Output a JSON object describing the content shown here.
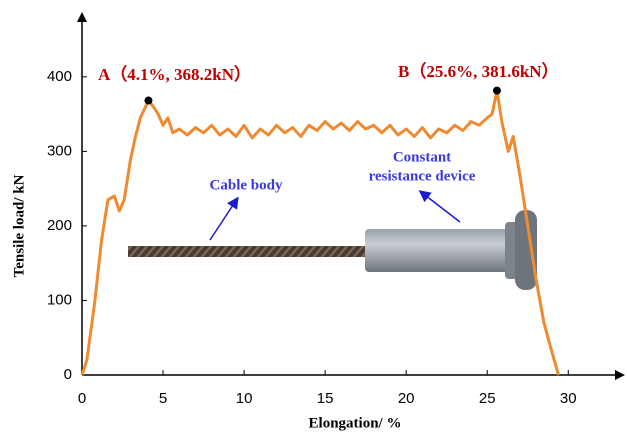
{
  "chart_data": {
    "type": "line",
    "x_label": "Elongation/ %",
    "y_label": "Tensile load/ kN",
    "color": "#f08a30",
    "xlim": [
      0,
      33.5
    ],
    "ylim": [
      0,
      487
    ],
    "xticks": [
      0,
      5,
      10,
      15,
      20,
      25,
      30
    ],
    "yticks": [
      0,
      100,
      200,
      300,
      400
    ],
    "grid": false,
    "x": [
      0,
      0.3,
      0.8,
      1.2,
      1.6,
      2.0,
      2.3,
      2.6,
      3.0,
      3.3,
      3.6,
      4.1,
      4.4,
      4.7,
      5.0,
      5.3,
      5.6,
      6,
      6.5,
      7,
      7.5,
      8,
      8.5,
      9,
      9.5,
      10,
      10.5,
      11,
      11.5,
      12,
      12.5,
      13,
      13.5,
      14,
      14.5,
      15,
      15.5,
      16,
      16.5,
      17,
      17.5,
      18,
      18.5,
      19,
      19.5,
      20,
      20.5,
      21,
      21.5,
      22,
      22.5,
      23,
      23.5,
      24,
      24.5,
      25,
      25.3,
      25.6,
      25.9,
      26.3,
      26.6,
      27,
      27.5,
      28,
      28.5,
      29,
      29.4
    ],
    "values": [
      0,
      20,
      100,
      180,
      235,
      240,
      220,
      235,
      290,
      320,
      345,
      368.2,
      360,
      350,
      335,
      345,
      325,
      330,
      322,
      332,
      325,
      335,
      322,
      330,
      320,
      335,
      318,
      330,
      322,
      335,
      325,
      332,
      320,
      335,
      328,
      340,
      330,
      338,
      328,
      340,
      330,
      335,
      325,
      335,
      322,
      330,
      320,
      332,
      318,
      330,
      325,
      335,
      328,
      340,
      335,
      345,
      350,
      381.6,
      340,
      300,
      320,
      270,
      200,
      130,
      70,
      30,
      0
    ],
    "annotations": [
      {
        "label": "A（4.1%, 368.2kN）",
        "x": 4.1,
        "y": 368.2
      },
      {
        "label": "B（25.6%, 381.6kN）",
        "x": 25.6,
        "y": 381.6
      }
    ],
    "callouts": [
      "Cable body",
      "Constant",
      "resistance device"
    ]
  }
}
